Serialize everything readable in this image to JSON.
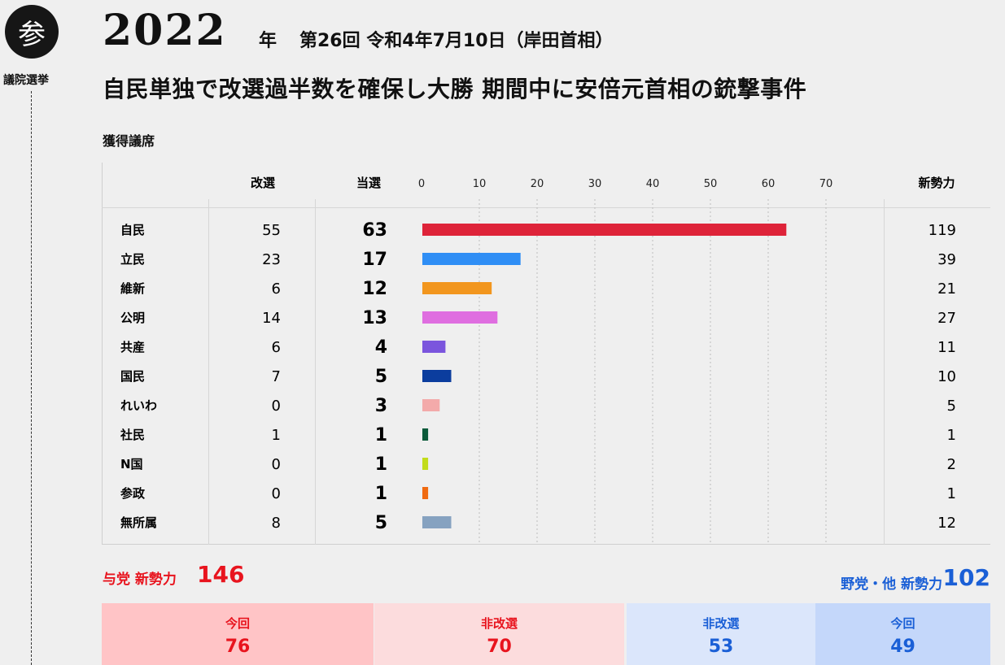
{
  "side": {
    "badge": "参",
    "label": "議院選挙"
  },
  "header": {
    "year": "2022",
    "year_suffix": "年",
    "session": "第26回 令和4年7月10日（岸田首相）",
    "headline": "自民単独で改選過半数を確保し大勝 期間中に安倍元首相の銃撃事件"
  },
  "seats_title": "獲得議席",
  "columns": {
    "up": "改選",
    "won": "当選",
    "new": "新勢力"
  },
  "chart_data": {
    "type": "bar",
    "orientation": "horizontal",
    "xlim": [
      0,
      70
    ],
    "ticks": [
      0,
      10,
      20,
      30,
      40,
      50,
      60,
      70
    ],
    "grid": true,
    "categories": [
      "自民",
      "立民",
      "維新",
      "公明",
      "共産",
      "国民",
      "れいわ",
      "社民",
      "N国",
      "参政",
      "無所属"
    ],
    "values": [
      63,
      17,
      12,
      13,
      4,
      5,
      3,
      1,
      1,
      1,
      5
    ],
    "up": [
      55,
      23,
      6,
      14,
      6,
      7,
      0,
      1,
      0,
      0,
      8
    ],
    "new_strength": [
      119,
      39,
      21,
      27,
      11,
      10,
      5,
      1,
      2,
      1,
      12
    ],
    "colors": [
      "#de2339",
      "#2f8ef5",
      "#f2961e",
      "#df6ee0",
      "#7b55dd",
      "#0b3d9e",
      "#f3aaaa",
      "#0b5a3a",
      "#c2dc1a",
      "#f06a10",
      "#86a2c0"
    ]
  },
  "ruling": {
    "label": "与党 新勢力",
    "value": "146"
  },
  "opposition": {
    "label": "野党・他 新勢力",
    "value": "102"
  },
  "boxes": [
    {
      "label": "今回",
      "value": "76"
    },
    {
      "label": "非改選",
      "value": "70"
    },
    {
      "label": "非改選",
      "value": "53"
    },
    {
      "label": "今回",
      "value": "49"
    }
  ]
}
